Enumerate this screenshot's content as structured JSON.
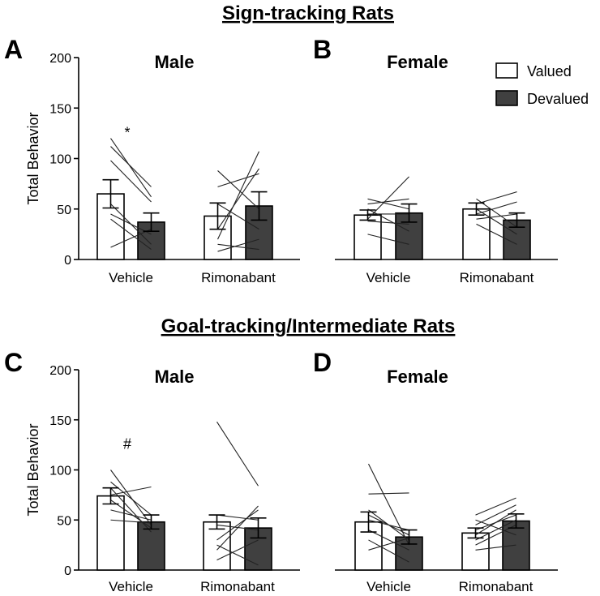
{
  "sections": [
    {
      "title": "Sign-tracking Rats"
    },
    {
      "title": "Goal-tracking/Intermediate Rats"
    }
  ],
  "legend": [
    {
      "label": "Valued",
      "color": "#ffffff"
    },
    {
      "label": "Devalued",
      "color": "#404040"
    }
  ],
  "chart_data": [
    {
      "letter": "A",
      "title": "Male",
      "type": "bar",
      "ylabel": "Total Behavior",
      "ylim": [
        0,
        200
      ],
      "yticks": [
        0,
        50,
        100,
        150,
        200
      ],
      "categories": [
        "Vehicle",
        "Rimonabant"
      ],
      "series": [
        {
          "name": "Valued",
          "values": [
            65,
            43
          ],
          "errors": [
            14,
            13
          ]
        },
        {
          "name": "Devalued",
          "values": [
            37,
            53
          ],
          "errors": [
            9,
            14
          ]
        }
      ],
      "individual": [
        [
          [
            120,
            62
          ],
          [
            112,
            72
          ],
          [
            98,
            57
          ],
          [
            55,
            15
          ],
          [
            45,
            25
          ],
          [
            40,
            10
          ],
          [
            12,
            30
          ]
        ],
        [
          [
            20,
            107
          ],
          [
            88,
            50
          ],
          [
            30,
            90
          ],
          [
            72,
            85
          ],
          [
            8,
            20
          ],
          [
            55,
            30
          ],
          [
            15,
            10
          ]
        ]
      ],
      "annotations": [
        {
          "text": "*",
          "category": 0
        }
      ]
    },
    {
      "letter": "B",
      "title": "Female",
      "type": "bar",
      "ylabel": "",
      "ylim": [
        0,
        200
      ],
      "yticks": [],
      "categories": [
        "Vehicle",
        "Rimonabant"
      ],
      "series": [
        {
          "name": "Valued",
          "values": [
            44,
            50
          ],
          "errors": [
            5,
            6
          ]
        },
        {
          "name": "Devalued",
          "values": [
            46,
            39
          ],
          "errors": [
            9,
            7
          ]
        }
      ],
      "individual": [
        [
          [
            40,
            82
          ],
          [
            55,
            60
          ],
          [
            60,
            50
          ],
          [
            38,
            35
          ],
          [
            50,
            28
          ],
          [
            25,
            15
          ],
          [
            45,
            45
          ]
        ],
        [
          [
            55,
            67
          ],
          [
            60,
            32
          ],
          [
            45,
            57
          ],
          [
            40,
            45
          ],
          [
            35,
            15
          ],
          [
            50,
            25
          ]
        ]
      ],
      "annotations": []
    },
    {
      "letter": "C",
      "title": "Male",
      "type": "bar",
      "ylabel": "Total Behavior",
      "ylim": [
        0,
        200
      ],
      "yticks": [
        0,
        50,
        100,
        150,
        200
      ],
      "categories": [
        "Vehicle",
        "Rimonabant"
      ],
      "series": [
        {
          "name": "Valued",
          "values": [
            74,
            48
          ],
          "errors": [
            8,
            7
          ]
        },
        {
          "name": "Devalued",
          "values": [
            48,
            42
          ],
          "errors": [
            7,
            10
          ]
        }
      ],
      "individual": [
        [
          [
            100,
            45
          ],
          [
            88,
            55
          ],
          [
            82,
            38
          ],
          [
            70,
            42
          ],
          [
            60,
            50
          ],
          [
            75,
            83
          ],
          [
            50,
            47
          ]
        ],
        [
          [
            148,
            84
          ],
          [
            30,
            60
          ],
          [
            55,
            50
          ],
          [
            20,
            64
          ],
          [
            45,
            40
          ],
          [
            10,
            30
          ],
          [
            25,
            5
          ]
        ]
      ],
      "annotations": [
        {
          "text": "#",
          "category": 0
        }
      ]
    },
    {
      "letter": "D",
      "title": "Female",
      "type": "bar",
      "ylabel": "",
      "ylim": [
        0,
        200
      ],
      "yticks": [],
      "categories": [
        "Vehicle",
        "Rimonabant"
      ],
      "series": [
        {
          "name": "Valued",
          "values": [
            48,
            37
          ],
          "errors": [
            10,
            5
          ]
        },
        {
          "name": "Devalued",
          "values": [
            33,
            49
          ],
          "errors": [
            7,
            7
          ]
        }
      ],
      "individual": [
        [
          [
            106,
            25
          ],
          [
            76,
            77
          ],
          [
            60,
            30
          ],
          [
            50,
            40
          ],
          [
            40,
            20
          ],
          [
            30,
            8
          ],
          [
            20,
            32
          ],
          [
            55,
            35
          ]
        ],
        [
          [
            55,
            72
          ],
          [
            45,
            65
          ],
          [
            35,
            60
          ],
          [
            30,
            50
          ],
          [
            40,
            55
          ],
          [
            25,
            45
          ],
          [
            20,
            25
          ],
          [
            50,
            35
          ]
        ]
      ],
      "annotations": []
    }
  ]
}
